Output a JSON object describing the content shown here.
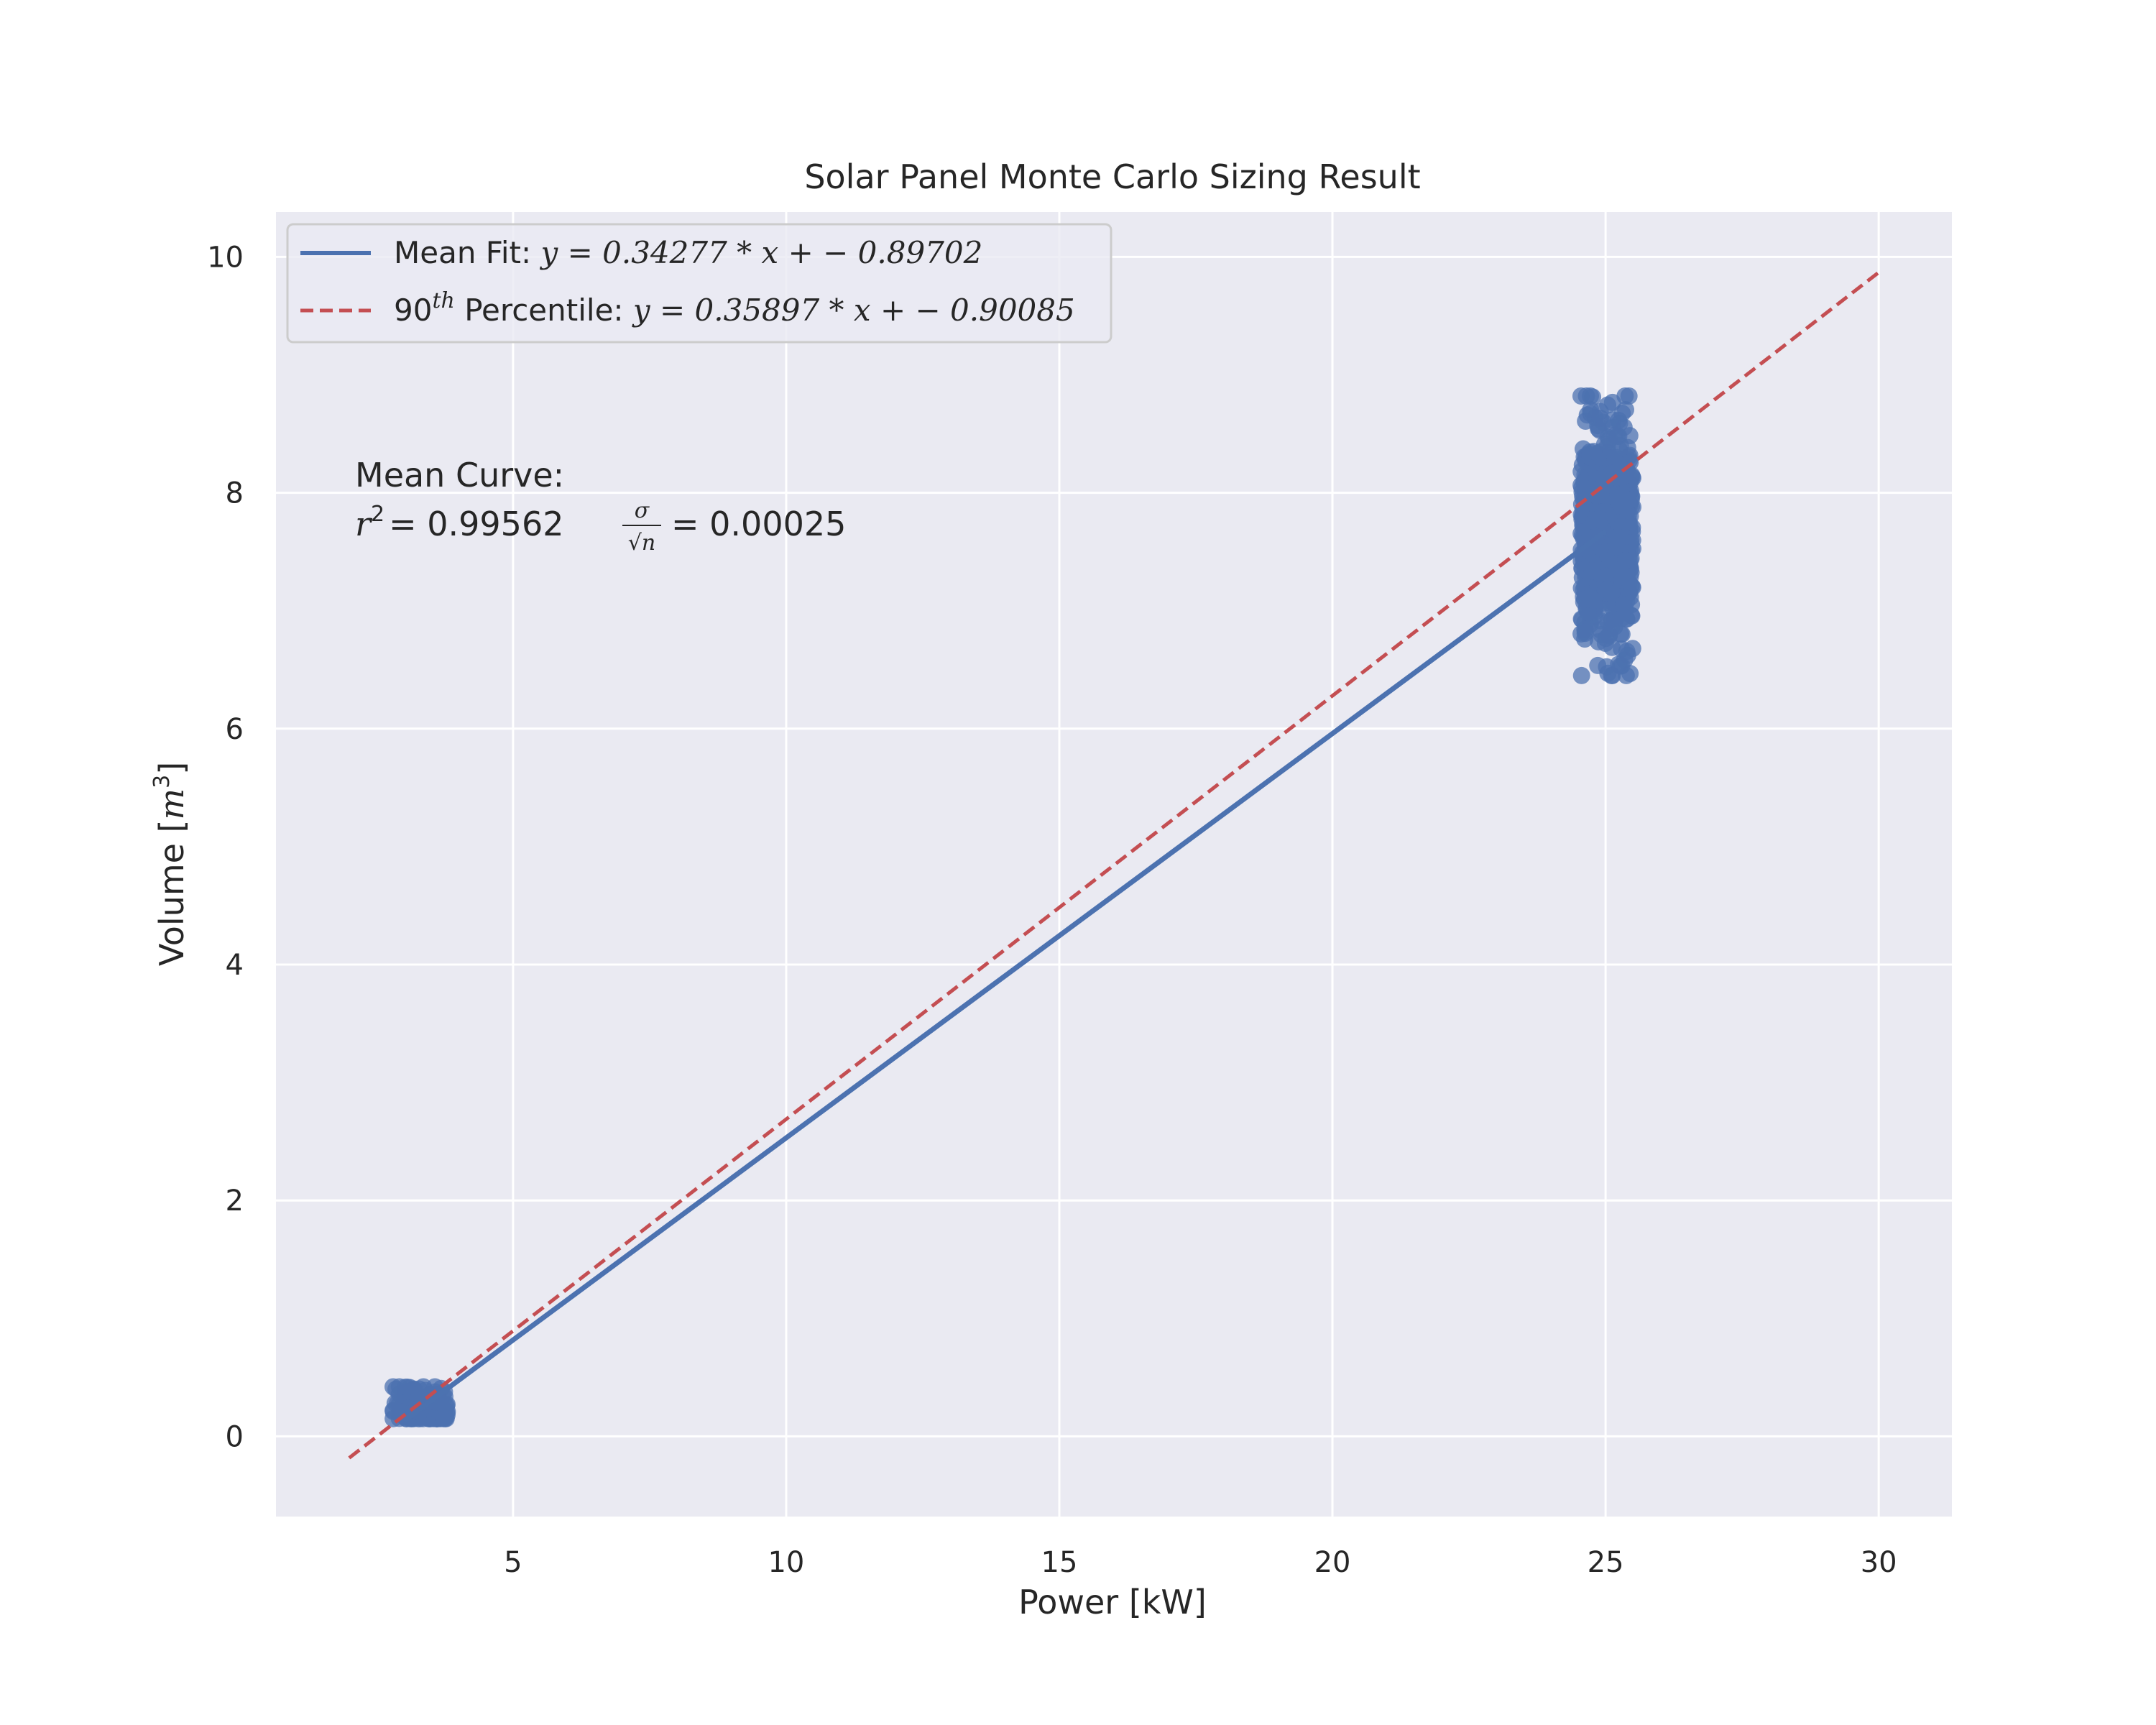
{
  "chart_data": {
    "type": "scatter",
    "title": "Solar Panel Monte Carlo Sizing Result",
    "xlabel": "Power [kW]",
    "ylabel": {
      "prefix": "Volume [",
      "var": "m",
      "sup": "3",
      "suffix": "]"
    },
    "xlim": [
      0.66,
      31.34
    ],
    "ylim": [
      -0.68,
      10.38
    ],
    "xticks": [
      5,
      10,
      15,
      20,
      25,
      30
    ],
    "yticks": [
      0,
      2,
      4,
      6,
      8,
      10
    ],
    "grid": true,
    "legend_position": "upper-left",
    "series": [
      {
        "name": "Mean Fit: y = 0.34277 * x + − 0.89702",
        "kind": "line",
        "style": "solid",
        "color": "#4c72b0",
        "slope": 0.34277,
        "intercept": -0.89702,
        "x_range": [
          3.0,
          25.0
        ],
        "legend_parts": {
          "label": "Mean Fit: ",
          "eq": "y = 0.34277 * x + − 0.89702"
        }
      },
      {
        "name": "90th Percentile: y = 0.35897 * x + − 0.90085",
        "kind": "line",
        "style": "dashed",
        "color": "#c44e52",
        "slope": 0.35897,
        "intercept": -0.90085,
        "x_range": [
          2.0,
          30.0
        ],
        "legend_parts": {
          "pre": "90",
          "sup": "th",
          "label": " Percentile: ",
          "eq": "y = 0.35897 * x + − 0.90085"
        }
      },
      {
        "kind": "scatter",
        "color": "#4c72b0",
        "clusters": [
          {
            "x_range": [
              2.8,
              3.8
            ],
            "y_center": 0.25,
            "y_spread": 0.1,
            "y_min": 0.15,
            "y_max": 0.42
          },
          {
            "x_range": [
              24.55,
              25.5
            ],
            "y_center": 7.62,
            "y_spread": 0.45,
            "y_min": 6.45,
            "y_max": 8.82
          }
        ]
      }
    ],
    "annotations": {
      "line1": "Mean Curve:",
      "r2_label": "r",
      "r2_sup": "2",
      "r2_value": "= 0.99562",
      "sigma": "σ",
      "sqrt_n": "√n",
      "sigma_value": "= 0.00025"
    }
  }
}
